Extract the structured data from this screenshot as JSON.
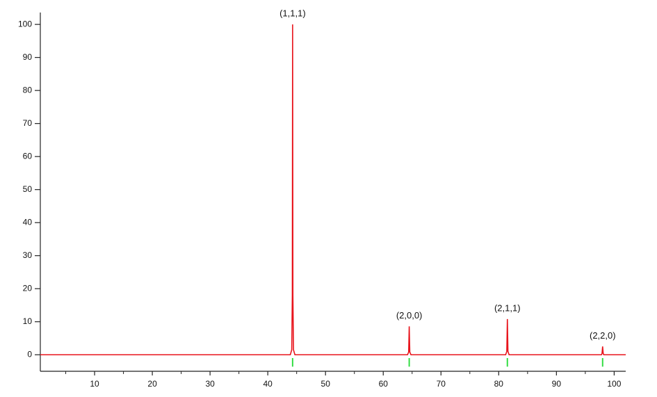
{
  "chart_data": {
    "type": "line",
    "x": [
      0.6,
      43.9,
      44.15,
      44.25,
      44.3,
      44.35,
      44.45,
      44.7,
      64.2,
      64.4,
      64.5,
      64.6,
      64.8,
      81.2,
      81.4,
      81.5,
      81.6,
      81.8,
      97.8,
      97.9,
      98.0,
      98.1,
      98.2,
      102
    ],
    "series": [
      {
        "color": "#e8141c",
        "values": [
          0,
          0,
          1.5,
          18,
          100,
          18,
          1.5,
          0,
          0,
          0.8,
          8.6,
          0.8,
          0,
          0,
          1,
          10.8,
          1,
          0,
          0,
          0.4,
          2.5,
          0.4,
          0,
          0
        ]
      }
    ],
    "reflections": [
      {
        "x": 44.3,
        "label": "(1,1,1)"
      },
      {
        "x": 64.5,
        "label": "(2,0,0)"
      },
      {
        "x": 81.5,
        "label": "(2,1,1)"
      },
      {
        "x": 98.0,
        "label": "(2,2,0)"
      }
    ],
    "reflection_color": "#33dd44",
    "xlim": [
      0.6,
      102
    ],
    "ylim": [
      -5,
      103.6
    ],
    "xticks": [
      10,
      20,
      30,
      40,
      50,
      60,
      70,
      80,
      90,
      100
    ],
    "xminorticks": [
      5,
      15,
      25,
      35,
      45,
      55,
      65,
      75,
      85,
      95
    ],
    "yticks": [
      0,
      10,
      20,
      30,
      40,
      50,
      60,
      70,
      80,
      90,
      100
    ]
  }
}
